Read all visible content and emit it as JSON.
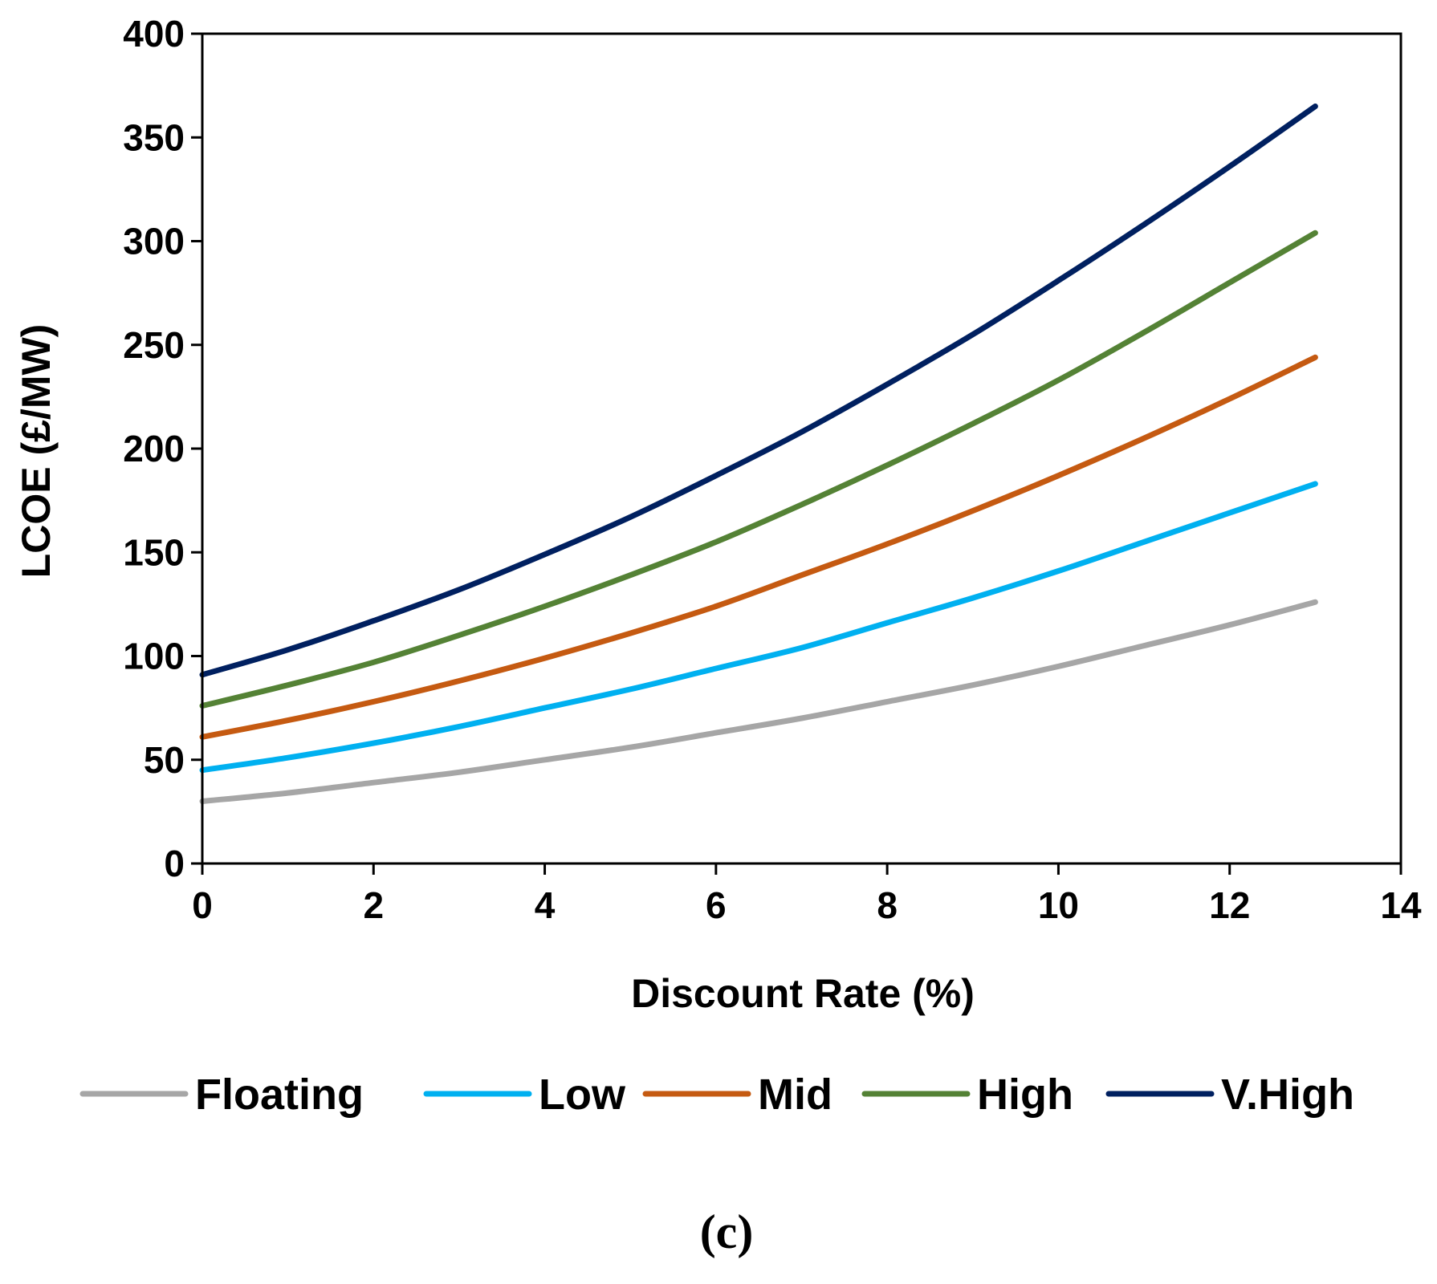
{
  "chart_data": {
    "type": "line",
    "title": "",
    "xlabel": "Discount Rate (%)",
    "ylabel": "LCOE (£/MW)",
    "xlim": [
      0,
      14
    ],
    "ylim": [
      0,
      400
    ],
    "xticks": [
      0,
      2,
      4,
      6,
      8,
      10,
      12,
      14
    ],
    "yticks": [
      0,
      50,
      100,
      150,
      200,
      250,
      300,
      350,
      400
    ],
    "x": [
      0,
      1,
      2,
      3,
      4,
      5,
      6,
      7,
      8,
      9,
      10,
      11,
      12,
      13
    ],
    "series": [
      {
        "name": "Floating",
        "color": "#a6a6a6",
        "values": [
          30,
          34,
          39,
          44,
          50,
          56,
          63,
          70,
          78,
          86,
          95,
          105,
          115,
          126
        ]
      },
      {
        "name": "Low",
        "color": "#00b0f0",
        "values": [
          45,
          51,
          58,
          66,
          75,
          84,
          94,
          104,
          116,
          128,
          141,
          155,
          169,
          183
        ]
      },
      {
        "name": "Mid",
        "color": "#c55a11",
        "values": [
          61,
          69,
          78,
          88,
          99,
          111,
          124,
          139,
          154,
          170,
          187,
          205,
          224,
          244
        ]
      },
      {
        "name": "High",
        "color": "#548235",
        "values": [
          76,
          86,
          97,
          110,
          124,
          139,
          155,
          173,
          192,
          212,
          233,
          256,
          280,
          304
        ]
      },
      {
        "name": "V.High",
        "color": "#002060",
        "values": [
          91,
          103,
          117,
          132,
          149,
          167,
          187,
          208,
          231,
          255,
          281,
          308,
          336,
          365
        ]
      }
    ],
    "legend_position": "bottom",
    "caption": "(c)"
  }
}
